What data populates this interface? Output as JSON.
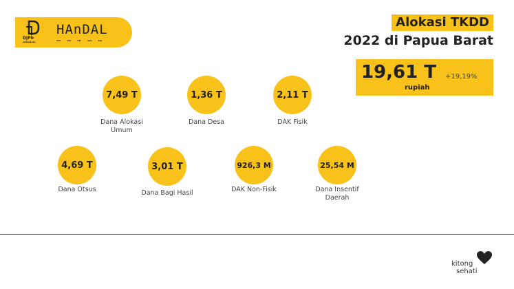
{
  "header": {
    "logo_djpb": "DJPb",
    "logo_handal": "HAnDAL",
    "title_line1": "Alokasi TKDD",
    "title_line2": "2022 di Papua Barat"
  },
  "total": {
    "value": "19,61 T",
    "unit": "rupiah",
    "growth": "+19,19%"
  },
  "allocations": [
    {
      "value": "7,49 T",
      "label_line1": "Dana Alokasi",
      "label_line2": "Umum"
    },
    {
      "value": "1,36 T",
      "label_line1": "Dana Desa",
      "label_line2": ""
    },
    {
      "value": "2,11 T",
      "label_line1": "DAK Fisik",
      "label_line2": ""
    },
    {
      "value": "4,69 T",
      "label_line1": "Dana Otsus",
      "label_line2": ""
    },
    {
      "value": "3,01 T",
      "label_line1": "Dana Bagi Hasil",
      "label_line2": ""
    },
    {
      "value": "926,3 M",
      "label_line1": "DAK Non-Fisik",
      "label_line2": ""
    },
    {
      "value": "25,54 M",
      "label_line1": "Dana Insentif",
      "label_line2": "Daerah"
    }
  ],
  "footer": {
    "brand_line1": "kitong",
    "brand_line2": "sehati"
  },
  "colors": {
    "accent": "#f8c21b",
    "text": "#222222"
  }
}
